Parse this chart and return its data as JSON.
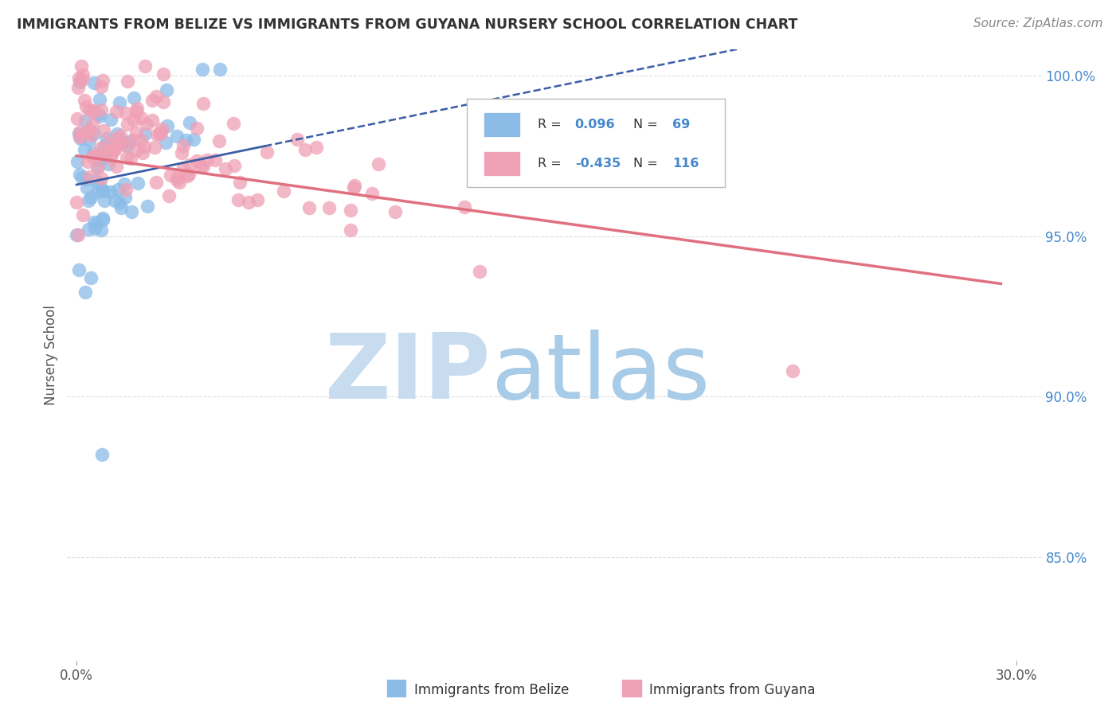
{
  "title": "IMMIGRANTS FROM BELIZE VS IMMIGRANTS FROM GUYANA NURSERY SCHOOL CORRELATION CHART",
  "source": "Source: ZipAtlas.com",
  "ylabel": "Nursery School",
  "ylim": [
    0.818,
    1.008
  ],
  "xlim": [
    -0.003,
    0.308
  ],
  "y_ticks": [
    0.85,
    0.9,
    0.95,
    1.0
  ],
  "y_tick_labels": [
    "85.0%",
    "90.0%",
    "95.0%",
    "100.0%"
  ],
  "legend_R_belize": "0.096",
  "legend_N_belize": "69",
  "legend_R_guyana": "-0.435",
  "legend_N_guyana": "116",
  "belize_color": "#8BBCE8",
  "guyana_color": "#F0A0B5",
  "trend_belize_color": "#3B5EA6",
  "trend_guyana_color": "#E07080",
  "watermark_zip_color": "#C8DCF0",
  "watermark_atlas_color": "#A8CCE8",
  "bg_color": "#FFFFFF",
  "grid_color": "#DDDDDD",
  "title_color": "#333333",
  "source_color": "#888888",
  "tick_color": "#4488CC",
  "legend_text_color": "#333333",
  "legend_value_color": "#4488CC"
}
